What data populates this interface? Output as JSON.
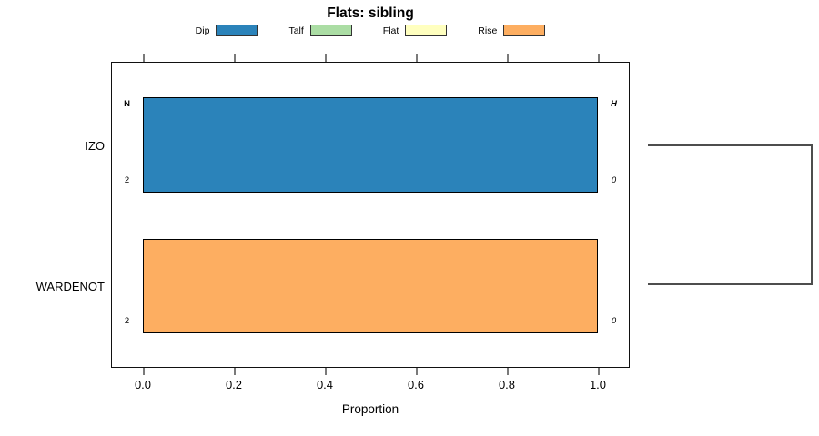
{
  "chart_data": {
    "type": "bar",
    "orientation": "horizontal",
    "title": "Flats: sibling",
    "xlabel": "Proportion",
    "xlim": [
      0,
      1
    ],
    "xticks": [
      0.0,
      0.2,
      0.4,
      0.6,
      0.8,
      1.0
    ],
    "xtick_labels": [
      "0.0",
      "0.2",
      "0.4",
      "0.6",
      "0.8",
      "1.0"
    ],
    "grid": false,
    "legend_position": "top",
    "categories": [
      "IZO",
      "WARDENOT"
    ],
    "series": [
      {
        "name": "Dip",
        "color": "#2B83BA",
        "values": [
          1.0,
          0.0
        ]
      },
      {
        "name": "Talf",
        "color": "#ABDDA4",
        "values": [
          0.0,
          0.0
        ]
      },
      {
        "name": "Flat",
        "color": "#FFFFBF",
        "values": [
          0.0,
          0.0
        ]
      },
      {
        "name": "Rise",
        "color": "#FDAE61",
        "values": [
          0.0,
          1.0
        ]
      }
    ],
    "annotations": {
      "left_header": "N",
      "right_header": "H",
      "rows": [
        {
          "category": "IZO",
          "left_value": "2",
          "right_value": "0"
        },
        {
          "category": "WARDENOT",
          "left_value": "2",
          "right_value": "0"
        }
      ]
    },
    "colors": {
      "bar_border": "#000000",
      "axis_box": "#111111",
      "ticks": "#7a7a7a",
      "connector": "#4d4d4d"
    }
  }
}
